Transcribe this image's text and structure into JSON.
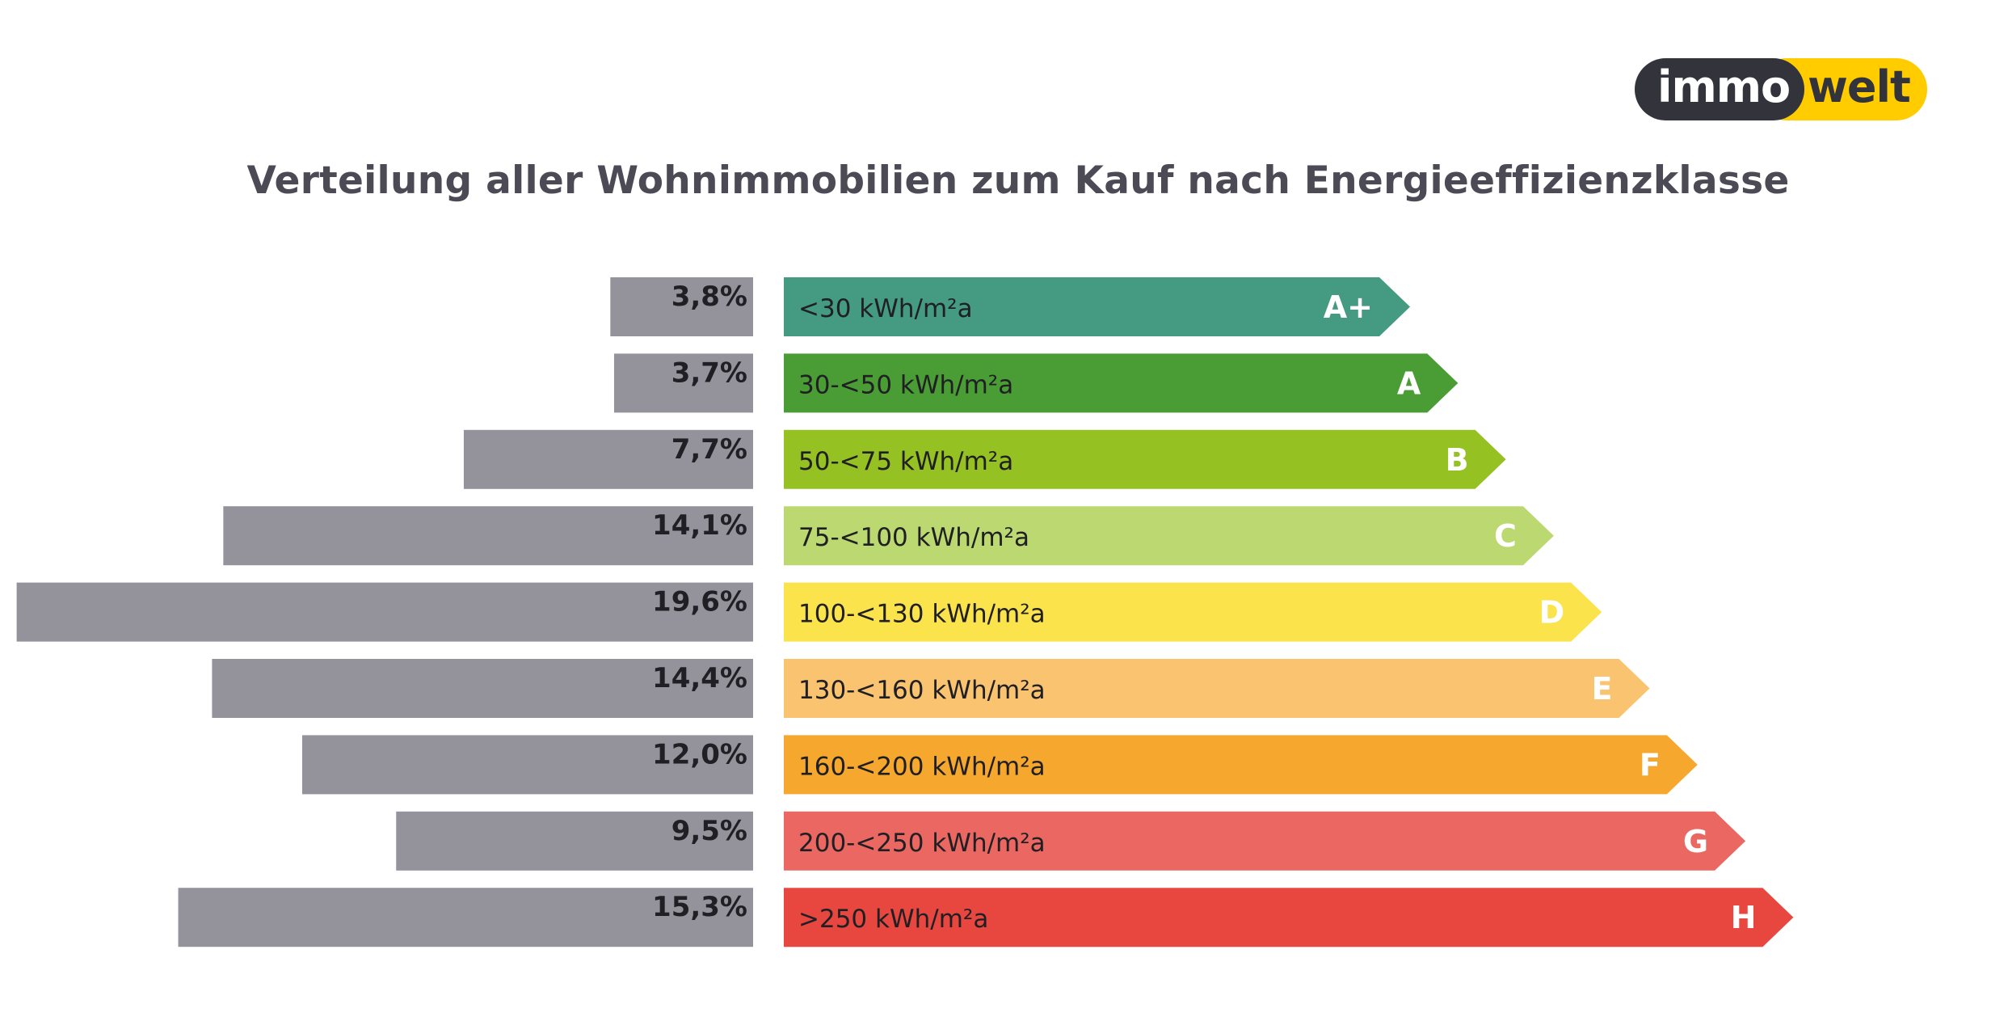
{
  "logo": {
    "part1": "immo",
    "part2": "welt",
    "colors": {
      "dark": "#32333b",
      "yellow": "#ffcc00"
    }
  },
  "chart_data": {
    "type": "bar",
    "title": "Verteilung aller Wohnimmobilien zum Kauf nach Energieeffizienzklasse",
    "orientation": "horizontal",
    "categories": [
      "A+",
      "A",
      "B",
      "C",
      "D",
      "E",
      "F",
      "G",
      "H"
    ],
    "ranges": [
      "<30 kWh/m²a",
      "30-<50 kWh/m²a",
      "50-<75 kWh/m²a",
      "75-<100 kWh/m²a",
      "100-<130 kWh/m²a",
      "130-<160 kWh/m²a",
      "160-<200 kWh/m²a",
      "200-<250 kWh/m²a",
      ">250 kWh/m²a"
    ],
    "values": [
      3.8,
      3.7,
      7.7,
      14.1,
      19.6,
      14.4,
      12.0,
      9.5,
      15.3
    ],
    "value_labels": [
      "3,8%",
      "3,7%",
      "7,7%",
      "14,1%",
      "19,6%",
      "14,4%",
      "12,0%",
      "9,5%",
      "15,3%"
    ],
    "unit": "%",
    "bar_color": "#94939c",
    "class_colors": [
      "#459a82",
      "#4a9d34",
      "#95c122",
      "#bcd870",
      "#fbe34c",
      "#f9c370",
      "#f6a72e",
      "#ea6861",
      "#e84740"
    ],
    "grid": false,
    "legend": "none"
  }
}
